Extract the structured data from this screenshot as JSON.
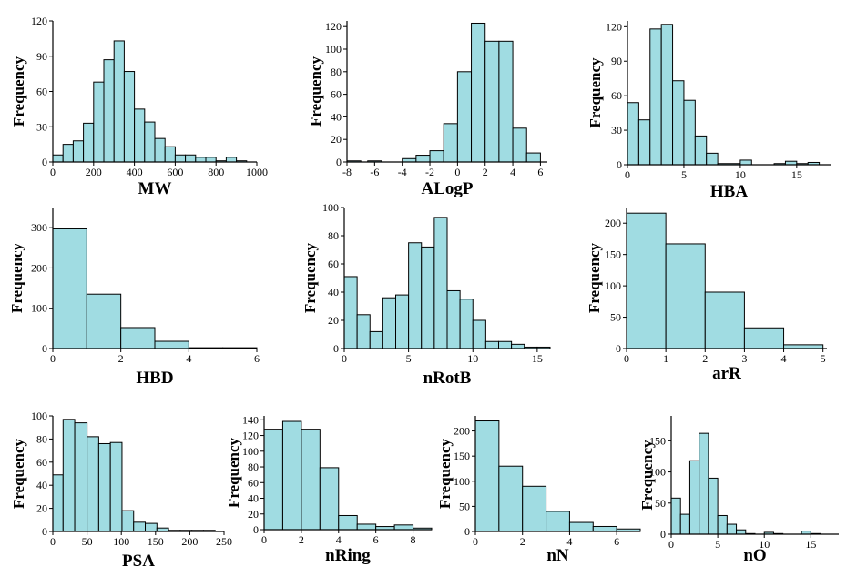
{
  "colors": {
    "bar_fill": "#a0dce2",
    "bar_stroke": "#000000",
    "axis": "#000000"
  },
  "chart_data": [
    {
      "type": "bar",
      "title": "",
      "xlabel": "MW",
      "ylabel": "Frequency",
      "xlim": [
        0,
        1000
      ],
      "ylim": [
        0,
        120
      ],
      "xticks": [
        0,
        200,
        400,
        600,
        800,
        1000
      ],
      "yticks": [
        0,
        30,
        60,
        90,
        120
      ],
      "bins": [
        [
          0,
          50,
          6
        ],
        [
          50,
          100,
          15
        ],
        [
          100,
          150,
          18
        ],
        [
          150,
          200,
          33
        ],
        [
          200,
          250,
          68
        ],
        [
          250,
          300,
          87
        ],
        [
          300,
          350,
          103
        ],
        [
          350,
          400,
          77
        ],
        [
          400,
          450,
          45
        ],
        [
          450,
          500,
          34
        ],
        [
          500,
          550,
          20
        ],
        [
          550,
          600,
          13
        ],
        [
          600,
          650,
          6
        ],
        [
          650,
          700,
          6
        ],
        [
          700,
          750,
          4
        ],
        [
          750,
          800,
          4
        ],
        [
          800,
          850,
          1
        ],
        [
          850,
          900,
          4
        ],
        [
          900,
          950,
          1
        ]
      ]
    },
    {
      "type": "bar",
      "title": "",
      "xlabel": "ALogP",
      "ylabel": "Frequency",
      "xlim": [
        -8,
        6.5
      ],
      "ylim": [
        0,
        125
      ],
      "xticks": [
        -8,
        -6,
        -4,
        -2,
        0,
        2,
        4,
        6
      ],
      "yticks": [
        0,
        20,
        40,
        60,
        80,
        100,
        120
      ],
      "bins": [
        [
          -8,
          -7,
          1
        ],
        [
          -6.5,
          -5.5,
          1
        ],
        [
          -4,
          -3,
          3
        ],
        [
          -3,
          -2,
          6
        ],
        [
          -2,
          -1,
          10
        ],
        [
          -1,
          0,
          34
        ],
        [
          0,
          1,
          80
        ],
        [
          1,
          2,
          123
        ],
        [
          2,
          3,
          107
        ],
        [
          3,
          4,
          107
        ],
        [
          4,
          5,
          30
        ],
        [
          5,
          6,
          8
        ]
      ]
    },
    {
      "type": "bar",
      "title": "",
      "xlabel": "HBA",
      "ylabel": "Frequency",
      "xlim": [
        0,
        18
      ],
      "ylim": [
        0,
        125
      ],
      "xticks": [
        0,
        5,
        10,
        15
      ],
      "yticks": [
        0,
        30,
        60,
        90,
        120
      ],
      "bins": [
        [
          0,
          1,
          54
        ],
        [
          1,
          2,
          39
        ],
        [
          2,
          3,
          118
        ],
        [
          3,
          4,
          122
        ],
        [
          4,
          5,
          73
        ],
        [
          5,
          6,
          56
        ],
        [
          6,
          7,
          25
        ],
        [
          7,
          8,
          10
        ],
        [
          8,
          9,
          1
        ],
        [
          9,
          10,
          1
        ],
        [
          10,
          11,
          4
        ],
        [
          13,
          14,
          1
        ],
        [
          14,
          15,
          3
        ],
        [
          15,
          16,
          1
        ],
        [
          16,
          17,
          2
        ]
      ]
    },
    {
      "type": "bar",
      "title": "",
      "xlabel": "HBD",
      "ylabel": "Frequency",
      "xlim": [
        0,
        6
      ],
      "ylim": [
        0,
        350
      ],
      "xticks": [
        0,
        2,
        4,
        6
      ],
      "yticks": [
        0,
        100,
        200,
        300
      ],
      "bins": [
        [
          0,
          1,
          297
        ],
        [
          1,
          2,
          135
        ],
        [
          2,
          3,
          52
        ],
        [
          3,
          4,
          18
        ],
        [
          4,
          5,
          2
        ],
        [
          5,
          6,
          2
        ]
      ]
    },
    {
      "type": "bar",
      "title": "",
      "xlabel": "nRotB",
      "ylabel": "Frequency",
      "xlim": [
        0,
        16
      ],
      "ylim": [
        0,
        100
      ],
      "xticks": [
        0,
        5,
        10,
        15
      ],
      "yticks": [
        0,
        20,
        40,
        60,
        80,
        100
      ],
      "bins": [
        [
          0,
          1,
          51
        ],
        [
          1,
          2,
          24
        ],
        [
          2,
          3,
          12
        ],
        [
          3,
          4,
          36
        ],
        [
          4,
          5,
          38
        ],
        [
          5,
          6,
          75
        ],
        [
          6,
          7,
          72
        ],
        [
          7,
          8,
          93
        ],
        [
          8,
          9,
          41
        ],
        [
          9,
          10,
          35
        ],
        [
          10,
          11,
          20
        ],
        [
          11,
          12,
          5
        ],
        [
          12,
          13,
          5
        ],
        [
          13,
          14,
          3
        ],
        [
          14,
          15,
          1
        ],
        [
          15,
          16,
          1
        ]
      ]
    },
    {
      "type": "bar",
      "title": "",
      "xlabel": "arR",
      "ylabel": "Frequency",
      "xlim": [
        0,
        5.1
      ],
      "ylim": [
        0,
        225
      ],
      "xticks": [
        0,
        1,
        2,
        3,
        4,
        5
      ],
      "yticks": [
        0,
        50,
        100,
        150,
        200
      ],
      "bins": [
        [
          0,
          1,
          216
        ],
        [
          1,
          2,
          167
        ],
        [
          2,
          3,
          90
        ],
        [
          3,
          4,
          33
        ],
        [
          4,
          5,
          6
        ]
      ]
    },
    {
      "type": "bar",
      "title": "",
      "xlabel": "PSA",
      "ylabel": "Frequency",
      "xlim": [
        0,
        250
      ],
      "ylim": [
        0,
        100
      ],
      "xticks": [
        0,
        50,
        100,
        150,
        200,
        250
      ],
      "yticks": [
        0,
        20,
        40,
        60,
        80,
        100
      ],
      "bins": [
        [
          0,
          15,
          49
        ],
        [
          15,
          32,
          97
        ],
        [
          32,
          50,
          94
        ],
        [
          50,
          67,
          82
        ],
        [
          67,
          84,
          76
        ],
        [
          84,
          101,
          77
        ],
        [
          101,
          118,
          18
        ],
        [
          118,
          135,
          8
        ],
        [
          135,
          152,
          7
        ],
        [
          152,
          169,
          3
        ],
        [
          169,
          186,
          1
        ],
        [
          186,
          203,
          1
        ],
        [
          203,
          220,
          1
        ],
        [
          220,
          237,
          1
        ]
      ]
    },
    {
      "type": "bar",
      "title": "",
      "xlabel": "nRing",
      "ylabel": "Frequency",
      "xlim": [
        0,
        9
      ],
      "ylim": [
        0,
        145
      ],
      "xticks": [
        0,
        2,
        4,
        6,
        8
      ],
      "yticks": [
        0,
        20,
        40,
        60,
        80,
        100,
        120,
        140
      ],
      "bins": [
        [
          0,
          1,
          128
        ],
        [
          1,
          2,
          138
        ],
        [
          2,
          3,
          128
        ],
        [
          3,
          4,
          79
        ],
        [
          4,
          5,
          18
        ],
        [
          5,
          6,
          7
        ],
        [
          6,
          7,
          4
        ],
        [
          7,
          8,
          6
        ],
        [
          8,
          9,
          2
        ]
      ]
    },
    {
      "type": "bar",
      "title": "",
      "xlabel": "nN",
      "ylabel": "Frequency",
      "xlim": [
        0,
        7
      ],
      "ylim": [
        0,
        230
      ],
      "xticks": [
        0,
        2,
        4,
        6
      ],
      "yticks": [
        0,
        50,
        100,
        150,
        200
      ],
      "bins": [
        [
          0,
          1,
          220
        ],
        [
          1,
          2,
          130
        ],
        [
          2,
          3,
          90
        ],
        [
          3,
          4,
          40
        ],
        [
          4,
          5,
          18
        ],
        [
          5,
          6,
          10
        ],
        [
          6,
          7,
          5
        ]
      ]
    },
    {
      "type": "bar",
      "title": "",
      "xlabel": "nO",
      "ylabel": "Frequency",
      "xlim": [
        0,
        18
      ],
      "ylim": [
        0,
        190
      ],
      "xticks": [
        0,
        5,
        10,
        15
      ],
      "yticks": [
        0,
        50,
        100,
        150
      ],
      "bins": [
        [
          0,
          1,
          58
        ],
        [
          1,
          2,
          32
        ],
        [
          2,
          3,
          118
        ],
        [
          3,
          4,
          162
        ],
        [
          4,
          5,
          90
        ],
        [
          5,
          6,
          30
        ],
        [
          6,
          7,
          16
        ],
        [
          7,
          8,
          7
        ],
        [
          8,
          9,
          1
        ],
        [
          10,
          11,
          3
        ],
        [
          11,
          12,
          1
        ],
        [
          14,
          15,
          5
        ],
        [
          15,
          16,
          1
        ]
      ]
    }
  ]
}
